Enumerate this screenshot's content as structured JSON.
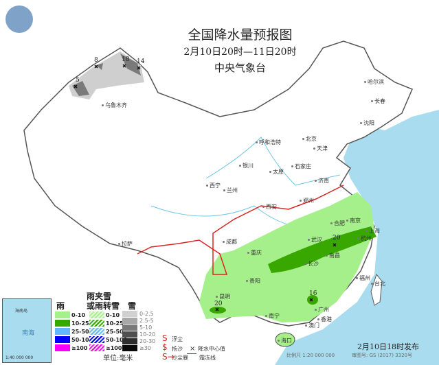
{
  "header": {
    "title": "全国降水量预报图",
    "period": "2月10日20时—11日20时",
    "issuer": "中央气象台"
  },
  "cities": [
    "乌鲁木齐",
    "哈尔滨",
    "长春",
    "沈阳",
    "北京",
    "天津",
    "呼和浩特",
    "石家庄",
    "太原",
    "银川",
    "济南",
    "西宁",
    "兰州",
    "郑州",
    "西安",
    "合肥",
    "南京",
    "上海",
    "杭州",
    "成都",
    "武汉",
    "重庆",
    "长沙",
    "南昌",
    "拉萨",
    "贵阳",
    "福州",
    "昆明",
    "台北",
    "南宁",
    "广州",
    "香港",
    "澳门",
    "海口"
  ],
  "precip_centers": [
    {
      "value": "18"
    },
    {
      "value": "8"
    },
    {
      "value": "14"
    },
    {
      "value": "5"
    },
    {
      "value": "20"
    },
    {
      "value": "16"
    },
    {
      "value": "20"
    }
  ],
  "legend": {
    "rain_title": "雨",
    "mix_title_1": "雨夹雪",
    "mix_title_2": "或雨转雪",
    "snow_title": "雪",
    "rain": [
      {
        "label": "0-10",
        "color": "#a6f08c"
      },
      {
        "label": "10-25",
        "color": "#38a800"
      },
      {
        "label": "25-50",
        "color": "#61b8ff"
      },
      {
        "label": "50-100",
        "color": "#0000fe"
      },
      {
        "label": "≥100",
        "color": "#fa00fa"
      }
    ],
    "mix": [
      {
        "label": "0-10"
      },
      {
        "label": "10-25"
      },
      {
        "label": "25-50"
      },
      {
        "label": "50-100"
      },
      {
        "label": "≥100"
      }
    ],
    "snow": [
      {
        "label": "0-2.5",
        "color": "#d0d0d0"
      },
      {
        "label": "2.5-5",
        "color": "#a8a8a8"
      },
      {
        "label": "5-10",
        "color": "#7a7a7a"
      },
      {
        "label": "10-20",
        "color": "#4f4f4f"
      },
      {
        "label": "20-30",
        "color": "#2e2e2e"
      },
      {
        "label": "≥30",
        "color": "#0a0a0a"
      }
    ],
    "unit": "单位:毫米",
    "symbols": {
      "floating_dust": "浮尘",
      "blowing_sand": "扬沙",
      "center": "降水中心值",
      "sandstorm": "沙尘暴",
      "frost_line": "霜冻线"
    }
  },
  "inset": {
    "sea": "南海",
    "island": "海南岛",
    "scale": "1:40 000 000"
  },
  "footer": {
    "published": "2月10日18时发布",
    "scale": "比例尺 1:20 000 000",
    "map_no": "审图号: GS (2017) 3320号"
  }
}
